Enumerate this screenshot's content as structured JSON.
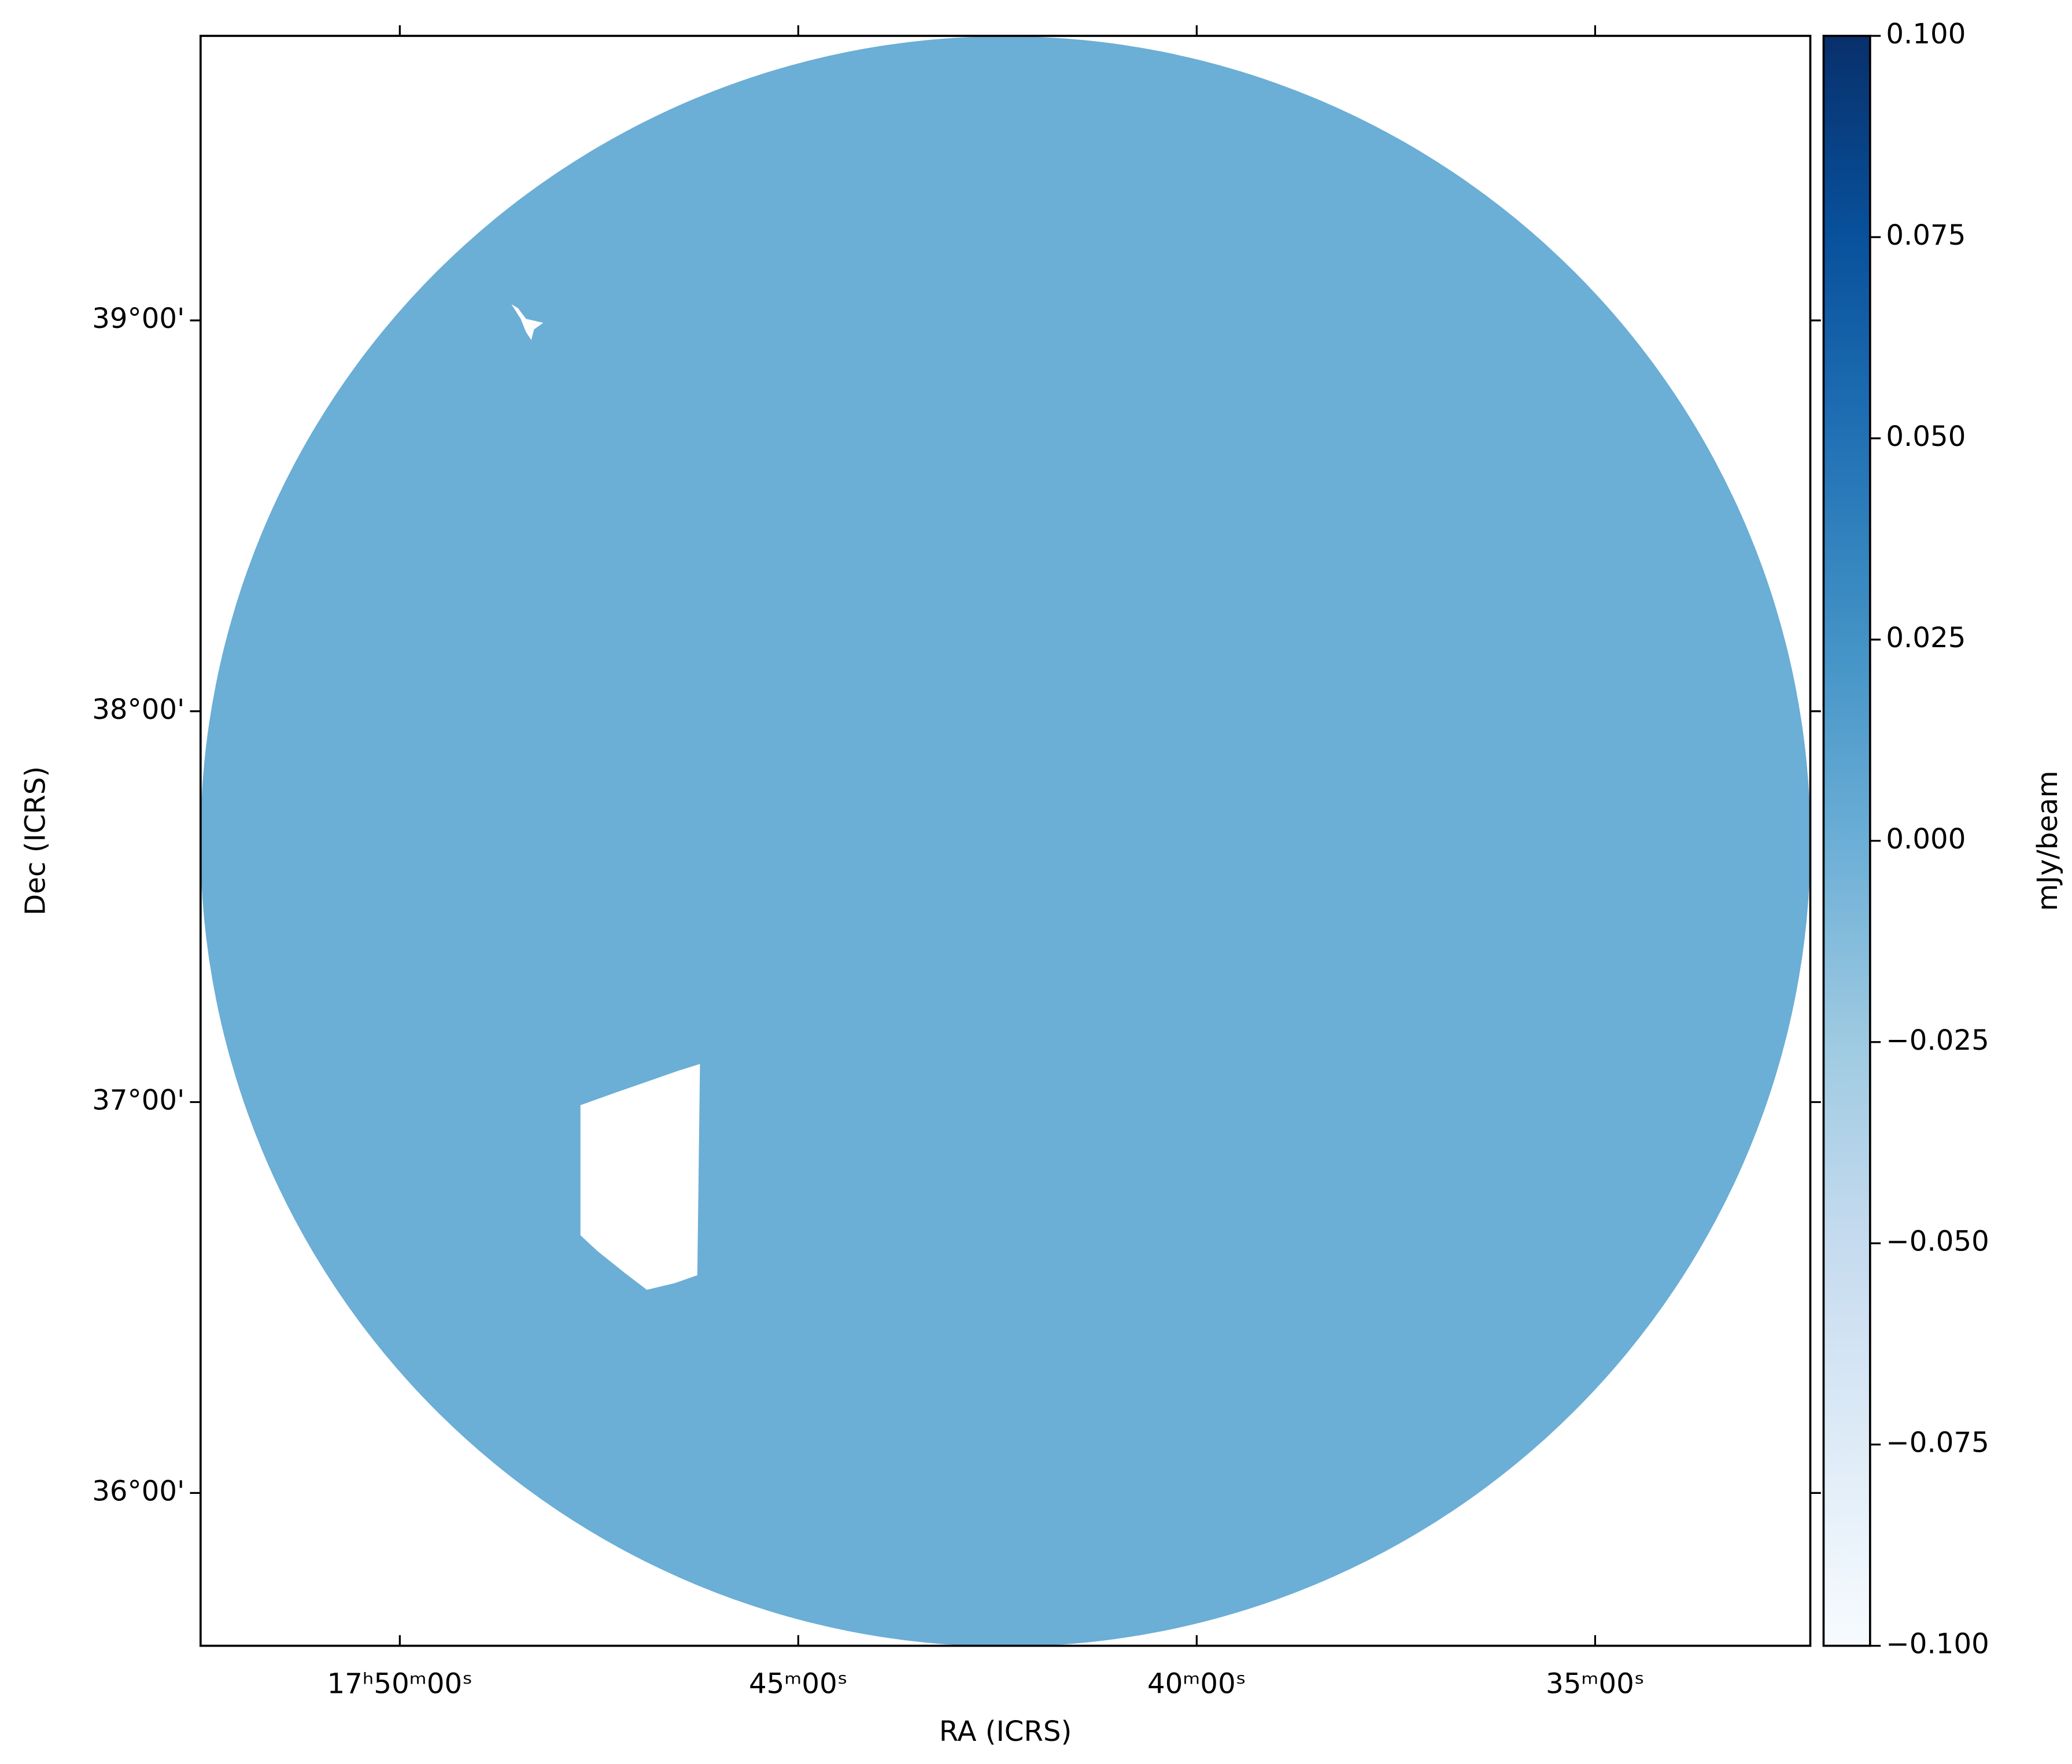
{
  "chart_data": {
    "type": "image",
    "xlabel": "RA (ICRS)",
    "ylabel": "Dec (ICRS)",
    "xlim": [
      268.125,
      263.075
    ],
    "ylim": [
      35.609,
      39.728
    ],
    "xticks": [
      {
        "value": 267.5,
        "label": "17ʰ50ᵐ00ˢ"
      },
      {
        "value": 266.25,
        "label": "45ᵐ00ˢ"
      },
      {
        "value": 265.0,
        "label": "40ᵐ00ˢ"
      },
      {
        "value": 263.75,
        "label": "35ᵐ00ˢ"
      }
    ],
    "yticks": [
      {
        "value": 39,
        "label": "39°00'"
      },
      {
        "value": 38,
        "label": "38°00'"
      },
      {
        "value": 37,
        "label": "37°00'"
      },
      {
        "value": 36,
        "label": "36°00'"
      }
    ],
    "field": {
      "ra": 265.6,
      "dec": 37.667,
      "radius": 2.06,
      "value": 0
    },
    "colorbar": {
      "label": "mJy/beam",
      "clim": [
        -0.1,
        0.1
      ],
      "ticks": [
        {
          "value": 0.1,
          "label": "0.100"
        },
        {
          "value": 0.075,
          "label": "0.075"
        },
        {
          "value": 0.05,
          "label": "0.050"
        },
        {
          "value": 0.025,
          "label": "0.025"
        },
        {
          "value": 0,
          "label": "0.000"
        },
        {
          "value": -0.025,
          "label": "−0.025"
        },
        {
          "value": -0.05,
          "label": "−0.050"
        },
        {
          "value": -0.075,
          "label": "−0.075"
        },
        {
          "value": -0.1,
          "label": "−0.100"
        }
      ],
      "colormap": [
        "#f7fbff",
        "#deebf7",
        "#c6dbef",
        "#9ecae1",
        "#6baed6",
        "#4292c6",
        "#2171b5",
        "#08519c",
        "#08306b"
      ]
    }
  }
}
